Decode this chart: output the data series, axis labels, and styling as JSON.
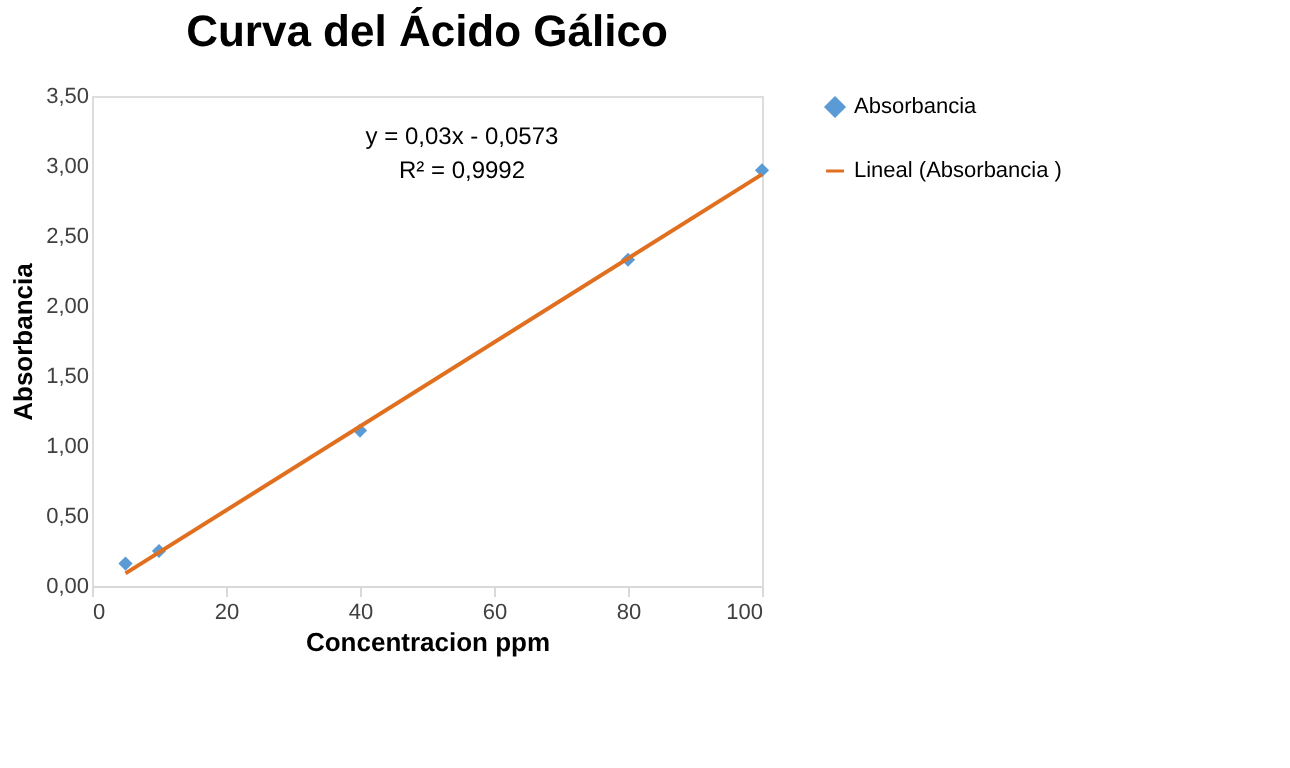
{
  "chart_data": {
    "type": "scatter",
    "title": "Curva del Ácido Gálico",
    "xlabel": "Concentracion ppm",
    "ylabel": "Absorbancia",
    "x": [
      5,
      10,
      40,
      80,
      100
    ],
    "series": [
      {
        "name": "Absorbancia",
        "color": "#5b9bd5",
        "marker": "diamond",
        "values": [
          0.16,
          0.25,
          1.11,
          2.33,
          2.97
        ]
      },
      {
        "name": "Lineal (Absorbancia )",
        "type": "line",
        "color": "#e07020",
        "line_style": "solid",
        "x": [
          5,
          100
        ],
        "values": [
          0.09,
          2.94
        ]
      }
    ],
    "xlim": [
      0,
      100
    ],
    "xticks": [
      0,
      20,
      40,
      60,
      80,
      100
    ],
    "ylim": [
      0,
      3.5
    ],
    "yticks": [
      {
        "value": 0,
        "label": "0,00"
      },
      {
        "value": 0.5,
        "label": "0,50"
      },
      {
        "value": 1,
        "label": "1,00"
      },
      {
        "value": 1.5,
        "label": "1,50"
      },
      {
        "value": 2,
        "label": "2,00"
      },
      {
        "value": 2.5,
        "label": "2,50"
      },
      {
        "value": 3,
        "label": "3,00"
      },
      {
        "value": 3.5,
        "label": "3,50"
      }
    ],
    "annotations": [
      "y = 0,03x - 0,0573",
      "R² = 0,9992"
    ],
    "grid": false,
    "legend": "right"
  }
}
